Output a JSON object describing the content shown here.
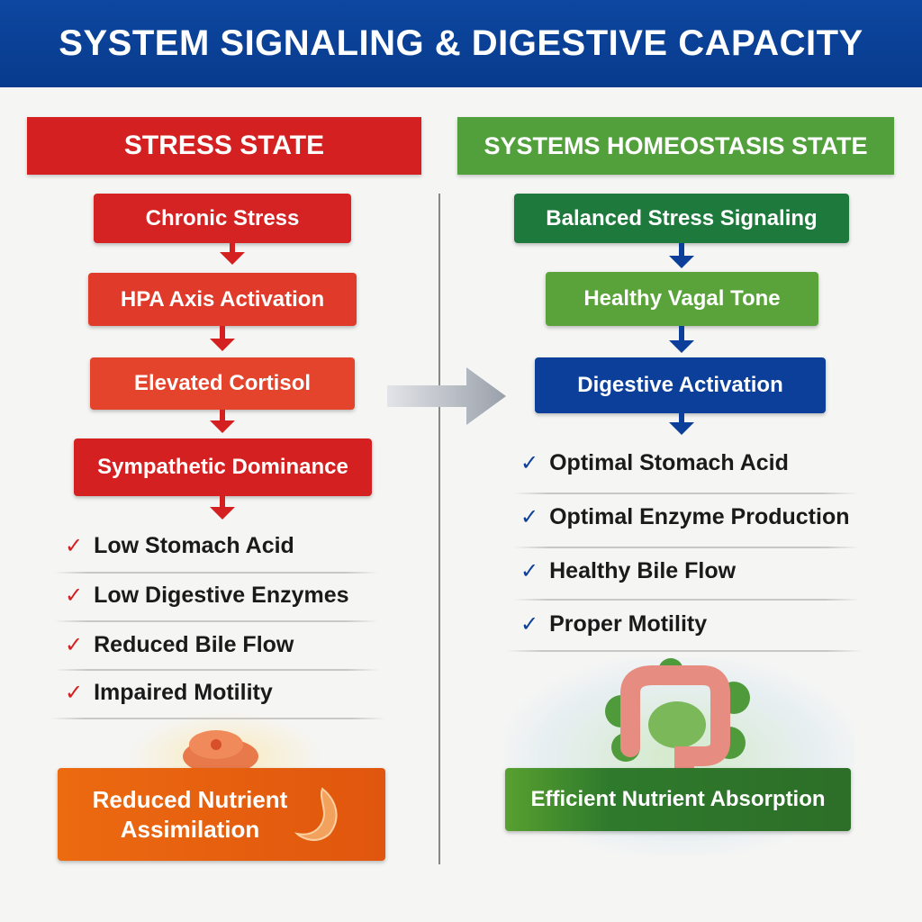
{
  "title": "SYSTEM SIGNALING & DIGESTIVE CAPACITY",
  "left": {
    "heading": "STRESS STATE",
    "steps": [
      "Chronic Stress",
      "HPA Axis Activation",
      "Elevated Cortisol",
      "Sympathetic Dominance"
    ],
    "effects": [
      "Low Stomach Acid",
      "Low Digestive Enzymes",
      "Reduced Bile Flow",
      "Impaired Motility"
    ],
    "outcome_line1": "Reduced Nutrient",
    "outcome_line2": "Assimilation",
    "check": "✓"
  },
  "right": {
    "heading": "SYSTEMS HOMEOSTASIS STATE",
    "steps": [
      "Balanced Stress Signaling",
      "Healthy Vagal Tone",
      "Digestive Activation"
    ],
    "effects": [
      "Optimal Stomach Acid",
      "Optimal Enzyme Production",
      "Healthy Bile Flow",
      "Proper Motility"
    ],
    "outcome": "Efficient Nutrient Absorption",
    "check": "✓"
  },
  "colors": {
    "header": "#0d47a1",
    "stress": "#d42020",
    "homeostasis": "#4e9a3a",
    "outcome_bad": "#e8600f",
    "outcome_good": "#3c7f2a",
    "navy": "#0b3f9a"
  }
}
